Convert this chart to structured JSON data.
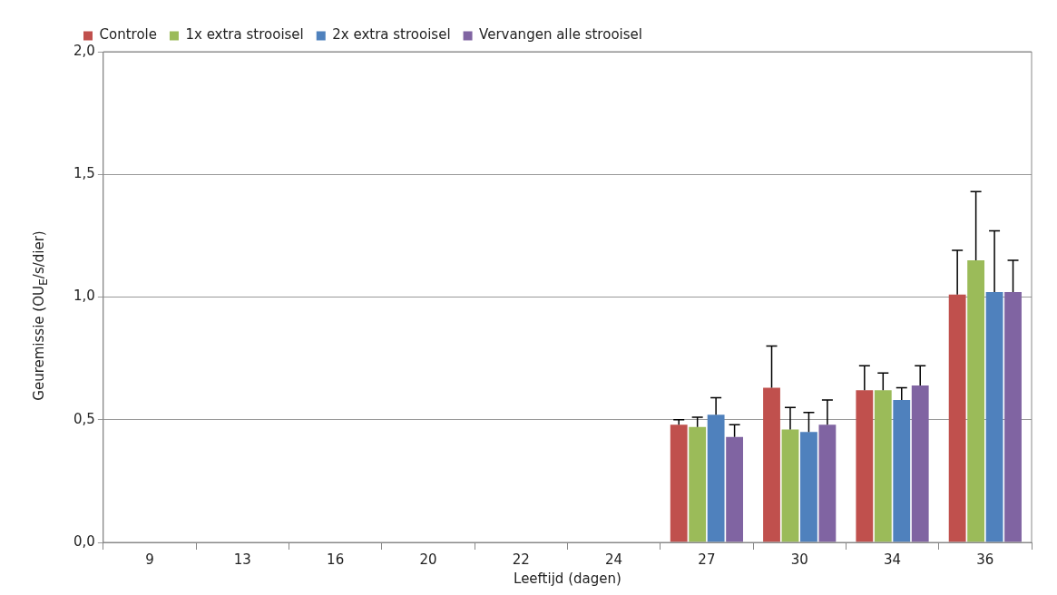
{
  "chart_data": {
    "type": "bar",
    "xlabel": "Leeftijd (dagen)",
    "ylabel": "Geuremissie (OU$_{E}$/s/dier)",
    "categories": [
      "9",
      "13",
      "16",
      "20",
      "22",
      "24",
      "27",
      "30",
      "34",
      "36"
    ],
    "series": [
      {
        "name": "Controle",
        "color": "#c0504d",
        "values": [
          null,
          null,
          null,
          null,
          null,
          null,
          0.48,
          0.63,
          0.62,
          1.01
        ],
        "errors": [
          null,
          null,
          null,
          null,
          null,
          null,
          [
            0.48,
            0.5
          ],
          [
            0.63,
            0.8
          ],
          [
            0.62,
            0.72
          ],
          [
            1.01,
            1.19
          ]
        ]
      },
      {
        "name": "1x extra strooisel",
        "color": "#9bbb59",
        "values": [
          null,
          null,
          null,
          null,
          null,
          null,
          0.47,
          0.46,
          0.62,
          1.15
        ],
        "errors": [
          null,
          null,
          null,
          null,
          null,
          null,
          [
            0.47,
            0.51
          ],
          [
            0.46,
            0.55
          ],
          [
            0.62,
            0.69
          ],
          [
            1.15,
            1.43
          ]
        ]
      },
      {
        "name": "2x extra strooisel",
        "color": "#4f81bd",
        "values": [
          null,
          null,
          null,
          null,
          null,
          null,
          0.52,
          0.45,
          0.58,
          1.02
        ],
        "errors": [
          null,
          null,
          null,
          null,
          null,
          null,
          [
            0.52,
            0.59
          ],
          [
            0.45,
            0.53
          ],
          [
            0.58,
            0.63
          ],
          [
            1.02,
            1.27
          ]
        ]
      },
      {
        "name": "Vervangen alle strooisel",
        "color": "#8064a2",
        "values": [
          null,
          null,
          null,
          null,
          null,
          null,
          0.43,
          0.48,
          0.64,
          1.02
        ],
        "errors": [
          null,
          null,
          null,
          null,
          null,
          null,
          [
            0.43,
            0.48
          ],
          [
            0.48,
            0.58
          ],
          [
            0.64,
            0.72
          ],
          [
            1.02,
            1.15
          ]
        ]
      }
    ],
    "ylim": [
      0,
      2
    ],
    "yticks": [
      {
        "value": 0,
        "label": "0,0"
      },
      {
        "value": 0.5,
        "label": "0,5"
      },
      {
        "value": 1,
        "label": "1,0"
      },
      {
        "value": 1.5,
        "label": "1,5"
      },
      {
        "value": 2,
        "label": "2,0"
      }
    ],
    "grid": "y",
    "legend": "top left"
  }
}
